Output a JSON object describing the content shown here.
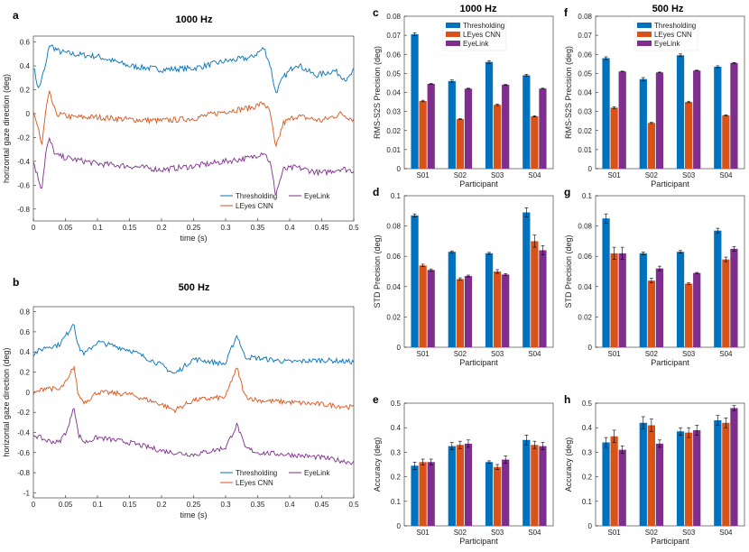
{
  "colors": {
    "thresholding": "#0072BD",
    "lcnn": "#D95319",
    "eyelink": "#7E2F8E"
  },
  "chart_data": [
    {
      "type": "line",
      "panel": "a",
      "title": "1000 Hz",
      "xlabel": "time (s)",
      "ylabel": "horizontal gaze direction (deg)",
      "xlim": [
        0,
        0.5
      ],
      "ylim": [
        -0.9,
        0.65
      ],
      "xticks": [
        "0",
        "0.05",
        "0.1",
        "0.15",
        "0.2",
        "0.25",
        "0.3",
        "0.35",
        "0.4",
        "0.45",
        "0.5"
      ],
      "yticks": [
        "-0.8",
        "-0.6",
        "-0.4",
        "-0.2",
        "0",
        "0.2",
        "0.4",
        "0.6"
      ],
      "legend": [
        "Thresholding",
        "EyeLink",
        "LEyes CNN"
      ],
      "series": [
        {
          "name": "Thresholding",
          "key": "thresholding",
          "baseline": 0.4,
          "x": [
            0,
            0.008,
            0.02,
            0.025,
            0.04,
            0.06,
            0.1,
            0.15,
            0.2,
            0.25,
            0.3,
            0.34,
            0.36,
            0.37,
            0.378,
            0.39,
            0.41,
            0.44,
            0.47,
            0.49,
            0.5
          ],
          "y": [
            0.4,
            0.2,
            0.42,
            0.58,
            0.52,
            0.5,
            0.48,
            0.4,
            0.37,
            0.38,
            0.44,
            0.47,
            0.55,
            0.4,
            0.17,
            0.3,
            0.42,
            0.32,
            0.36,
            0.28,
            0.36
          ]
        },
        {
          "name": "LEyes CNN",
          "key": "lcnn",
          "baseline": 0,
          "x": [
            0,
            0.008,
            0.013,
            0.02,
            0.025,
            0.035,
            0.06,
            0.1,
            0.15,
            0.2,
            0.25,
            0.3,
            0.34,
            0.36,
            0.37,
            0.378,
            0.39,
            0.41,
            0.45,
            0.48,
            0.5
          ],
          "y": [
            0,
            -0.12,
            -0.28,
            0.05,
            0.17,
            0,
            -0.03,
            -0.03,
            -0.05,
            -0.06,
            -0.04,
            0.02,
            0.05,
            0.09,
            0,
            -0.3,
            -0.08,
            -0.02,
            -0.06,
            0,
            -0.05
          ]
        },
        {
          "name": "EyeLink",
          "key": "eyelink",
          "baseline": -0.4,
          "x": [
            0,
            0.008,
            0.013,
            0.02,
            0.025,
            0.035,
            0.06,
            0.1,
            0.15,
            0.2,
            0.25,
            0.3,
            0.34,
            0.36,
            0.37,
            0.378,
            0.39,
            0.41,
            0.45,
            0.48,
            0.5
          ],
          "y": [
            -0.4,
            -0.55,
            -0.63,
            -0.3,
            -0.22,
            -0.35,
            -0.38,
            -0.42,
            -0.44,
            -0.47,
            -0.44,
            -0.4,
            -0.37,
            -0.32,
            -0.42,
            -0.68,
            -0.47,
            -0.45,
            -0.5,
            -0.46,
            -0.48
          ]
        }
      ]
    },
    {
      "type": "line",
      "panel": "b",
      "title": "500 Hz",
      "xlabel": "time (s)",
      "ylabel": "horizontal gaze direction (deg)",
      "xlim": [
        0,
        0.5
      ],
      "ylim": [
        -1.05,
        0.85
      ],
      "xticks": [
        "0",
        "0.05",
        "0.1",
        "0.15",
        "0.2",
        "0.25",
        "0.3",
        "0.35",
        "0.4",
        "0.45",
        "0.5"
      ],
      "yticks": [
        "-1",
        "-0.8",
        "-0.6",
        "-0.4",
        "-0.2",
        "0",
        "0.2",
        "0.4",
        "0.6",
        "0.8"
      ],
      "legend": [
        "Thresholding",
        "EyeLink",
        "LEyes CNN"
      ],
      "series": [
        {
          "name": "Thresholding",
          "key": "thresholding",
          "baseline": 0.4,
          "x": [
            0,
            0.02,
            0.04,
            0.055,
            0.063,
            0.07,
            0.08,
            0.1,
            0.15,
            0.2,
            0.22,
            0.25,
            0.28,
            0.3,
            0.31,
            0.318,
            0.33,
            0.35,
            0.4,
            0.45,
            0.5
          ],
          "y": [
            0.38,
            0.45,
            0.47,
            0.6,
            0.7,
            0.45,
            0.38,
            0.5,
            0.42,
            0.27,
            0.18,
            0.33,
            0.3,
            0.28,
            0.45,
            0.57,
            0.35,
            0.34,
            0.3,
            0.32,
            0.3
          ]
        },
        {
          "name": "LEyes CNN",
          "key": "lcnn",
          "baseline": 0,
          "x": [
            0,
            0.02,
            0.04,
            0.055,
            0.063,
            0.07,
            0.08,
            0.1,
            0.15,
            0.2,
            0.22,
            0.25,
            0.28,
            0.3,
            0.31,
            0.318,
            0.33,
            0.35,
            0.4,
            0.45,
            0.5
          ],
          "y": [
            -0.02,
            0.05,
            0.02,
            0.13,
            0.27,
            -0.03,
            -0.1,
            0,
            -0.02,
            -0.12,
            -0.18,
            -0.08,
            -0.06,
            -0.05,
            0.13,
            0.24,
            -0.04,
            -0.08,
            -0.1,
            -0.12,
            -0.15
          ]
        },
        {
          "name": "EyeLink",
          "key": "eyelink",
          "baseline": -0.45,
          "x": [
            0,
            0.02,
            0.04,
            0.055,
            0.063,
            0.07,
            0.08,
            0.1,
            0.15,
            0.2,
            0.22,
            0.25,
            0.28,
            0.3,
            0.31,
            0.318,
            0.33,
            0.35,
            0.4,
            0.45,
            0.5
          ],
          "y": [
            -0.42,
            -0.48,
            -0.5,
            -0.35,
            -0.12,
            -0.42,
            -0.5,
            -0.45,
            -0.5,
            -0.58,
            -0.6,
            -0.62,
            -0.58,
            -0.55,
            -0.42,
            -0.32,
            -0.55,
            -0.6,
            -0.62,
            -0.65,
            -0.7
          ]
        }
      ]
    },
    {
      "type": "bar",
      "panel": "c",
      "title": "1000 Hz",
      "xlabel": "Participant",
      "ylabel": "RMS-S2S Precision (deg)",
      "ylim": [
        0,
        0.08
      ],
      "yticks": [
        "0",
        "0.01",
        "0.02",
        "0.03",
        "0.04",
        "0.05",
        "0.06",
        "0.07",
        "0.08"
      ],
      "categories": [
        "S01",
        "S02",
        "S03",
        "S04"
      ],
      "legend": [
        "Thresholding",
        "LEyes CNN",
        "EyeLink"
      ],
      "series": [
        {
          "name": "Thresholding",
          "key": "thresholding",
          "values": [
            0.0705,
            0.046,
            0.056,
            0.049
          ],
          "err": [
            0.0008,
            0.0006,
            0.0007,
            0.0005
          ]
        },
        {
          "name": "LEyes CNN",
          "key": "lcnn",
          "values": [
            0.0355,
            0.026,
            0.0335,
            0.0275
          ],
          "err": [
            0.0004,
            0.0003,
            0.0004,
            0.0003
          ]
        },
        {
          "name": "EyeLink",
          "key": "eyelink",
          "values": [
            0.0445,
            0.042,
            0.044,
            0.042
          ],
          "err": [
            0.0002,
            0.0002,
            0.0002,
            0.0002
          ]
        }
      ]
    },
    {
      "type": "bar",
      "panel": "f",
      "title": "500 Hz",
      "xlabel": "Participant",
      "ylabel": "RMS-S2S Precision (deg)",
      "ylim": [
        0,
        0.08
      ],
      "yticks": [
        "0",
        "0.01",
        "0.02",
        "0.03",
        "0.04",
        "0.05",
        "0.06",
        "0.07",
        "0.08"
      ],
      "categories": [
        "S01",
        "S02",
        "S03",
        "S04"
      ],
      "legend": [
        "Thresholding",
        "LEyes CNN",
        "EyeLink"
      ],
      "series": [
        {
          "name": "Thresholding",
          "key": "thresholding",
          "values": [
            0.058,
            0.047,
            0.0595,
            0.0535
          ],
          "err": [
            0.0007,
            0.0008,
            0.0007,
            0.0005
          ]
        },
        {
          "name": "LEyes CNN",
          "key": "lcnn",
          "values": [
            0.032,
            0.024,
            0.035,
            0.028
          ],
          "err": [
            0.0005,
            0.0003,
            0.0004,
            0.0003
          ]
        },
        {
          "name": "EyeLink",
          "key": "eyelink",
          "values": [
            0.051,
            0.0505,
            0.0515,
            0.0555
          ],
          "err": [
            0.0002,
            0.0002,
            0.0002,
            0.0002
          ]
        }
      ]
    },
    {
      "type": "bar",
      "panel": "d",
      "title": "",
      "xlabel": "Participant",
      "ylabel": "STD Precision (deg)",
      "ylim": [
        0,
        0.1
      ],
      "yticks": [
        "0",
        "0.02",
        "0.04",
        "0.06",
        "0.08",
        "0.1"
      ],
      "categories": [
        "S01",
        "S02",
        "S03",
        "S04"
      ],
      "legend": [],
      "series": [
        {
          "name": "Thresholding",
          "key": "thresholding",
          "values": [
            0.087,
            0.063,
            0.062,
            0.089
          ],
          "err": [
            0.001,
            0.0006,
            0.0006,
            0.003
          ]
        },
        {
          "name": "LEyes CNN",
          "key": "lcnn",
          "values": [
            0.054,
            0.045,
            0.05,
            0.07
          ],
          "err": [
            0.0008,
            0.0008,
            0.0012,
            0.004
          ]
        },
        {
          "name": "EyeLink",
          "key": "eyelink",
          "values": [
            0.051,
            0.047,
            0.048,
            0.064
          ],
          "err": [
            0.0007,
            0.0006,
            0.0006,
            0.003
          ]
        }
      ]
    },
    {
      "type": "bar",
      "panel": "g",
      "title": "",
      "xlabel": "Participant",
      "ylabel": "STD Precision (deg)",
      "ylim": [
        0,
        0.1
      ],
      "yticks": [
        "0",
        "0.02",
        "0.04",
        "0.06",
        "0.08",
        "0.1"
      ],
      "categories": [
        "S01",
        "S02",
        "S03",
        "S04"
      ],
      "legend": [],
      "series": [
        {
          "name": "Thresholding",
          "key": "thresholding",
          "values": [
            0.085,
            0.062,
            0.063,
            0.077
          ],
          "err": [
            0.003,
            0.0008,
            0.0008,
            0.0015
          ]
        },
        {
          "name": "LEyes CNN",
          "key": "lcnn",
          "values": [
            0.062,
            0.044,
            0.042,
            0.058
          ],
          "err": [
            0.004,
            0.0015,
            0.0005,
            0.0015
          ]
        },
        {
          "name": "EyeLink",
          "key": "eyelink",
          "values": [
            0.062,
            0.052,
            0.049,
            0.065
          ],
          "err": [
            0.004,
            0.0015,
            0.0004,
            0.0015
          ]
        }
      ]
    },
    {
      "type": "bar",
      "panel": "e",
      "title": "",
      "xlabel": "Participant",
      "ylabel": "Accuracy (deg)",
      "ylim": [
        0,
        0.5
      ],
      "yticks": [
        "0",
        "0.1",
        "0.2",
        "0.3",
        "0.4",
        "0.5"
      ],
      "categories": [
        "S01",
        "S02",
        "S03",
        "S04"
      ],
      "legend": [],
      "series": [
        {
          "name": "Thresholding",
          "key": "thresholding",
          "values": [
            0.245,
            0.325,
            0.26,
            0.35
          ],
          "err": [
            0.015,
            0.015,
            0.005,
            0.02
          ]
        },
        {
          "name": "LEyes CNN",
          "key": "lcnn",
          "values": [
            0.26,
            0.33,
            0.24,
            0.33
          ],
          "err": [
            0.012,
            0.015,
            0.01,
            0.015
          ]
        },
        {
          "name": "EyeLink",
          "key": "eyelink",
          "values": [
            0.26,
            0.335,
            0.27,
            0.325
          ],
          "err": [
            0.012,
            0.015,
            0.015,
            0.015
          ]
        }
      ]
    },
    {
      "type": "bar",
      "panel": "h",
      "title": "",
      "xlabel": "Participant",
      "ylabel": "Accuracy (deg)",
      "ylim": [
        0,
        0.5
      ],
      "yticks": [
        "0",
        "0.1",
        "0.2",
        "0.3",
        "0.4",
        "0.5"
      ],
      "categories": [
        "S01",
        "S02",
        "S03",
        "S04"
      ],
      "legend": [],
      "series": [
        {
          "name": "Thresholding",
          "key": "thresholding",
          "values": [
            0.34,
            0.42,
            0.385,
            0.43
          ],
          "err": [
            0.02,
            0.025,
            0.015,
            0.02
          ]
        },
        {
          "name": "LEyes CNN",
          "key": "lcnn",
          "values": [
            0.365,
            0.41,
            0.38,
            0.42
          ],
          "err": [
            0.025,
            0.025,
            0.02,
            0.02
          ]
        },
        {
          "name": "EyeLink",
          "key": "eyelink",
          "values": [
            0.31,
            0.335,
            0.39,
            0.48
          ],
          "err": [
            0.015,
            0.015,
            0.02,
            0.01
          ]
        }
      ]
    }
  ]
}
